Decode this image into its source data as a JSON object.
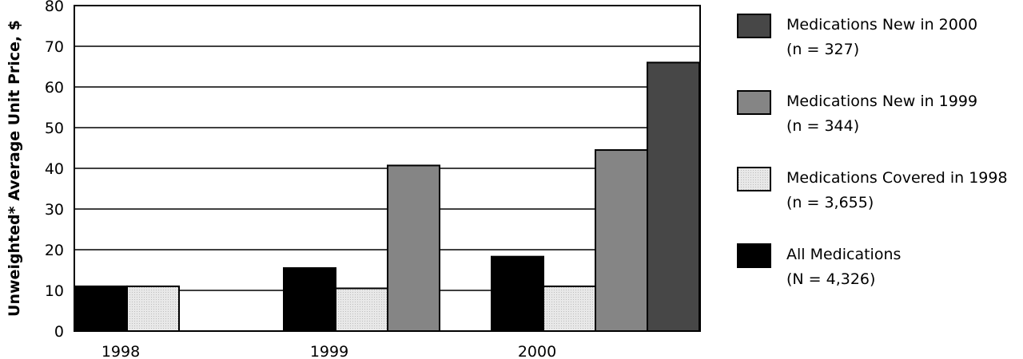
{
  "chart_data": {
    "type": "bar",
    "ylabel": "Unweighted* Average Unit Price, $",
    "ylim": [
      0,
      80
    ],
    "yticks": [
      0,
      10,
      20,
      30,
      40,
      50,
      60,
      70,
      80
    ],
    "categories": [
      "1998",
      "1999",
      "2000"
    ],
    "grid": "horizontal",
    "legend_position": "right",
    "series": [
      {
        "name": "All Medications",
        "note": "(N = 4,326)",
        "color": "#000000",
        "values": [
          11,
          15.5,
          18.3
        ]
      },
      {
        "name": "Medications Covered in 1998",
        "note": "(n = 3,655)",
        "color": "#e6e6e6",
        "values": [
          11,
          10.5,
          11
        ]
      },
      {
        "name": "Medications New in 1999",
        "note": "(n = 344)",
        "color": "#858585",
        "values": [
          null,
          40.7,
          44.5
        ]
      },
      {
        "name": "Medications New in 2000",
        "note": "(n = 327)",
        "color": "#474747",
        "values": [
          null,
          null,
          66
        ]
      }
    ],
    "legend_order": [
      3,
      2,
      1,
      0
    ]
  }
}
